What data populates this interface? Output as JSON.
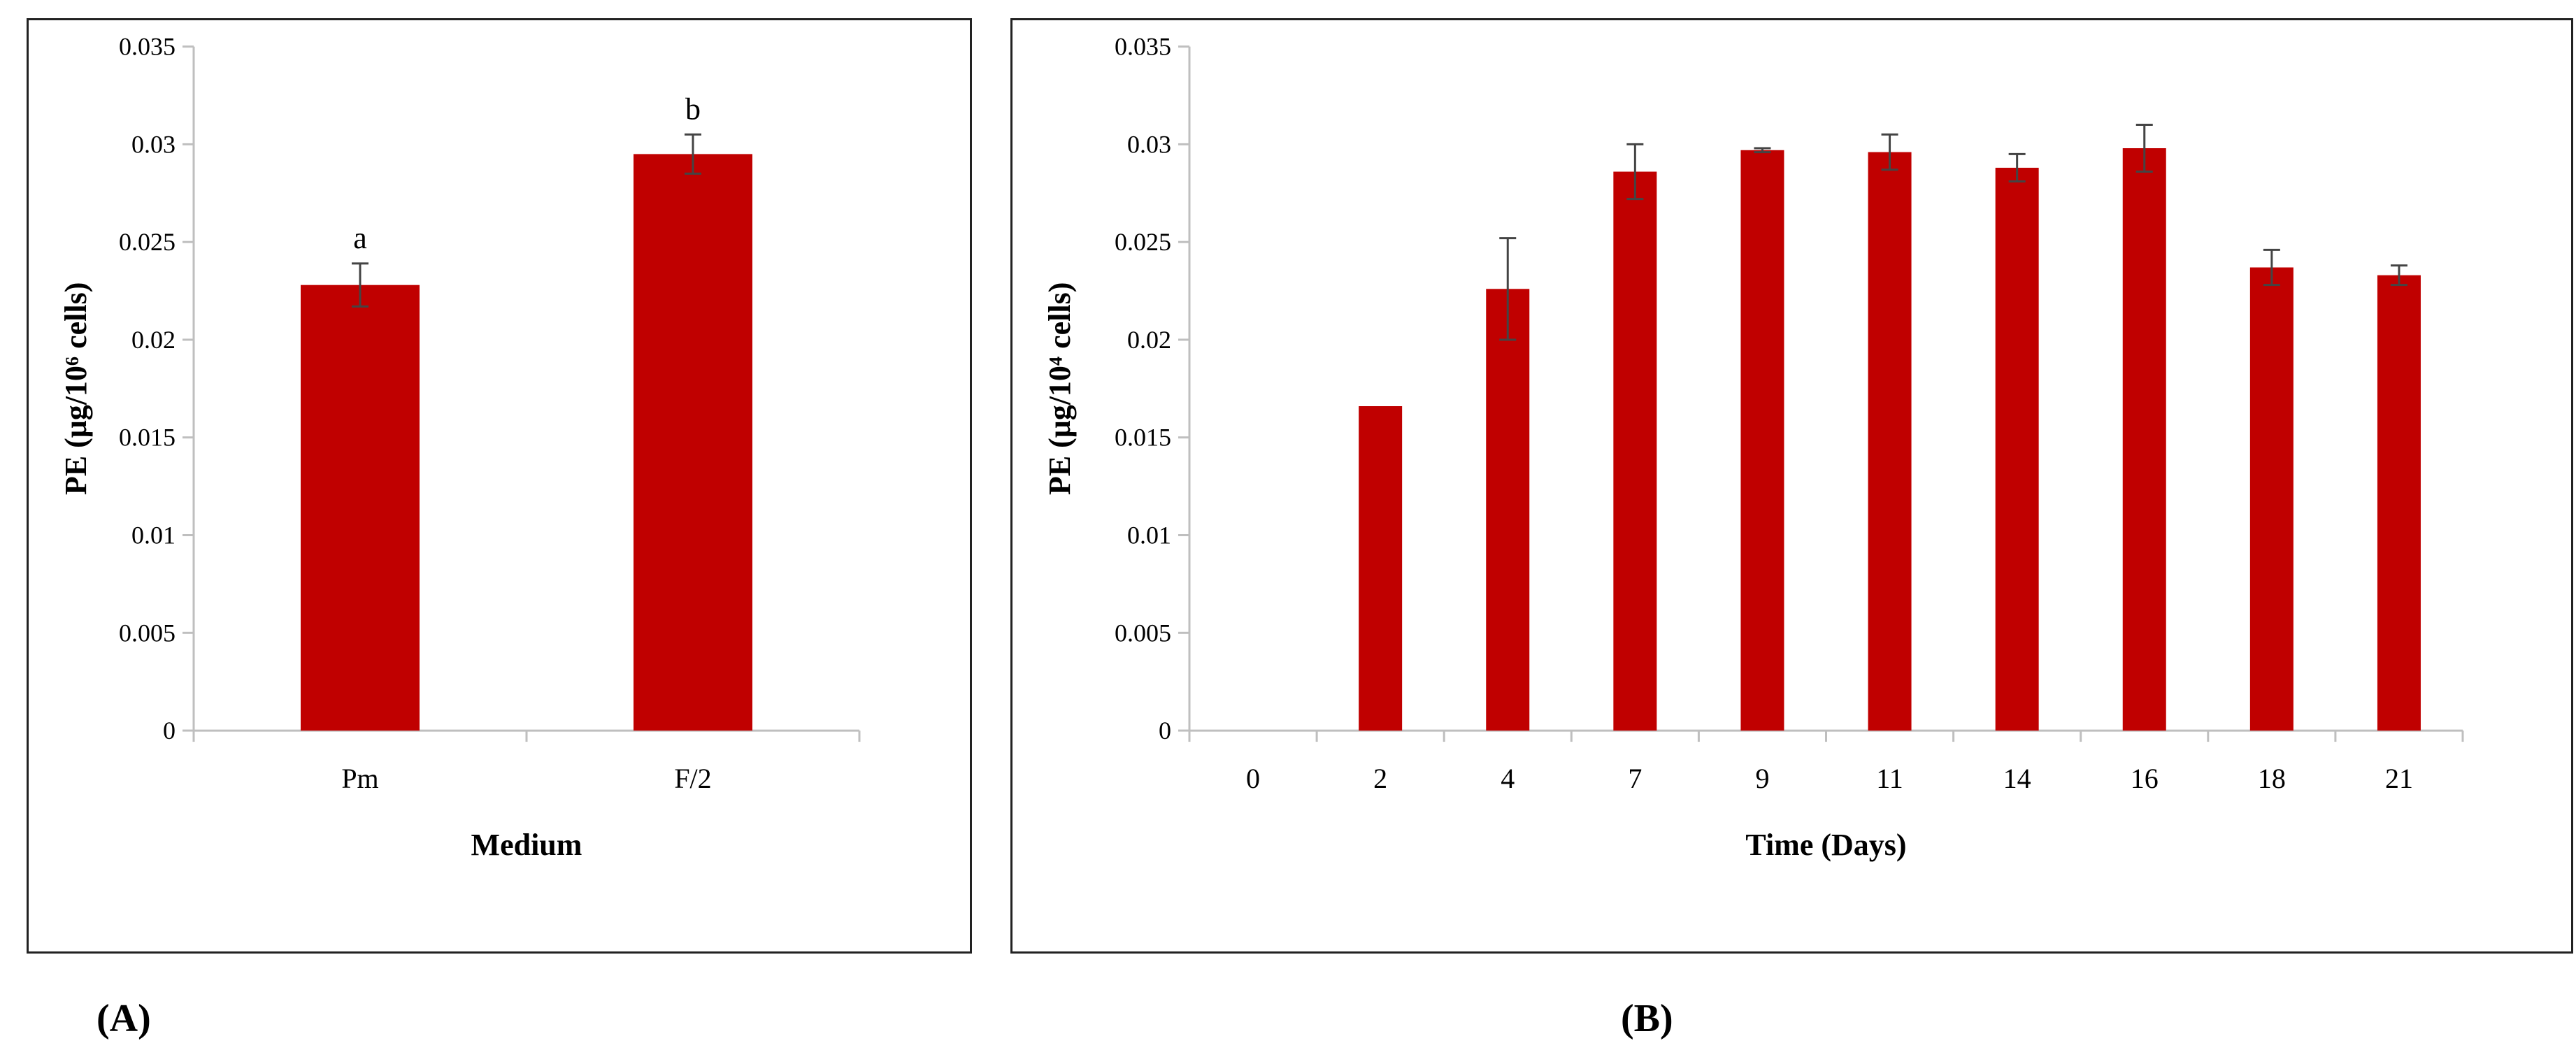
{
  "colors": {
    "bar": "#C00000",
    "axis": "#BFBFBF",
    "text": "#000000",
    "errorbar": "#444444"
  },
  "panel_labels": {
    "a": "(A)",
    "b": "(B)"
  },
  "chart_data": [
    {
      "id": "A",
      "type": "bar",
      "title": "",
      "xlabel": "Medium",
      "ylabel": "PE (μg/10⁶ cells)",
      "ylim": [
        0,
        0.035
      ],
      "yticks": [
        "0",
        "0.005",
        "0.01",
        "0.015",
        "0.02",
        "0.025",
        "0.03",
        "0.035"
      ],
      "categories": [
        "Pm",
        "F/2"
      ],
      "values": [
        0.0228,
        0.0295
      ],
      "errors": [
        0.0011,
        0.001
      ],
      "annotations": [
        "a",
        "b"
      ]
    },
    {
      "id": "B",
      "type": "bar",
      "title": "",
      "xlabel": "Time (Days)",
      "ylabel": "PE (μg/10⁴ cells)",
      "ylim": [
        0,
        0.035
      ],
      "yticks": [
        "0",
        "0.005",
        "0.01",
        "0.015",
        "0.02",
        "0.025",
        "0.03",
        "0.035"
      ],
      "categories": [
        "0",
        "2",
        "4",
        "7",
        "9",
        "11",
        "14",
        "16",
        "18",
        "21"
      ],
      "values": [
        0,
        0.0166,
        0.0226,
        0.0286,
        0.0297,
        0.0296,
        0.0288,
        0.0298,
        0.0237,
        0.0233
      ],
      "errors": [
        0,
        0,
        0.0026,
        0.0014,
        0.0001,
        0.0009,
        0.0007,
        0.0012,
        0.0009,
        0.0005
      ]
    }
  ]
}
